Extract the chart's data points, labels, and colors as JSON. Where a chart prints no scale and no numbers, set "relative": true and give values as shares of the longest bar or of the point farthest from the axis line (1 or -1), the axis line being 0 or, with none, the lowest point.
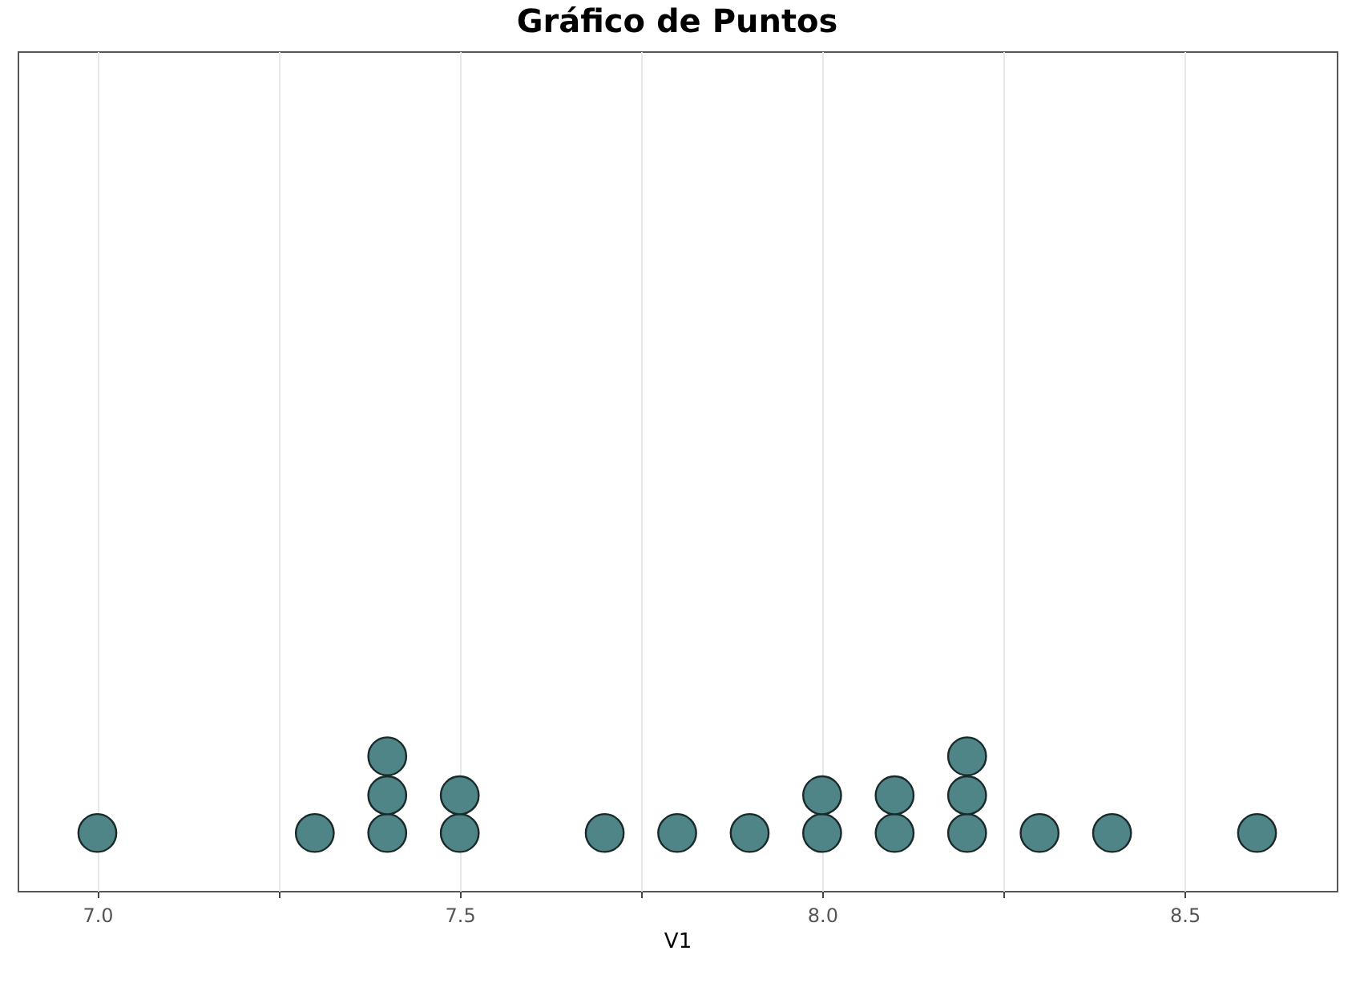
{
  "chart_data": {
    "type": "scatter",
    "title": "Gráfico de Puntos",
    "xlabel": "V1",
    "x": [
      7.0,
      7.3,
      7.4,
      7.4,
      7.4,
      7.5,
      7.5,
      7.7,
      7.8,
      7.9,
      8.0,
      8.0,
      8.1,
      8.1,
      8.2,
      8.2,
      8.2,
      8.3,
      8.4,
      8.6
    ],
    "values": [
      0.43,
      0.43,
      0.43,
      0.71,
      1,
      0.43,
      0.71,
      0.43,
      0.43,
      0.43,
      0.43,
      0.71,
      0.43,
      0.71,
      0.43,
      0.71,
      1,
      0.43,
      0.43,
      0.43
    ],
    "relative": true,
    "color": "#4f8587",
    "xlim": [
      6.89,
      8.71
    ],
    "xticks": [
      {
        "value": 7.0,
        "label": "7.0"
      },
      {
        "value": 7.25,
        "label": null
      },
      {
        "value": 7.5,
        "label": "7.5"
      },
      {
        "value": 7.75,
        "label": null
      },
      {
        "value": 8.0,
        "label": "8.0"
      },
      {
        "value": 8.25,
        "label": null
      },
      {
        "value": 8.5,
        "label": "8.5"
      }
    ],
    "grid": "x",
    "tick_labels": "x",
    "marker": "circle",
    "legend": false
  }
}
